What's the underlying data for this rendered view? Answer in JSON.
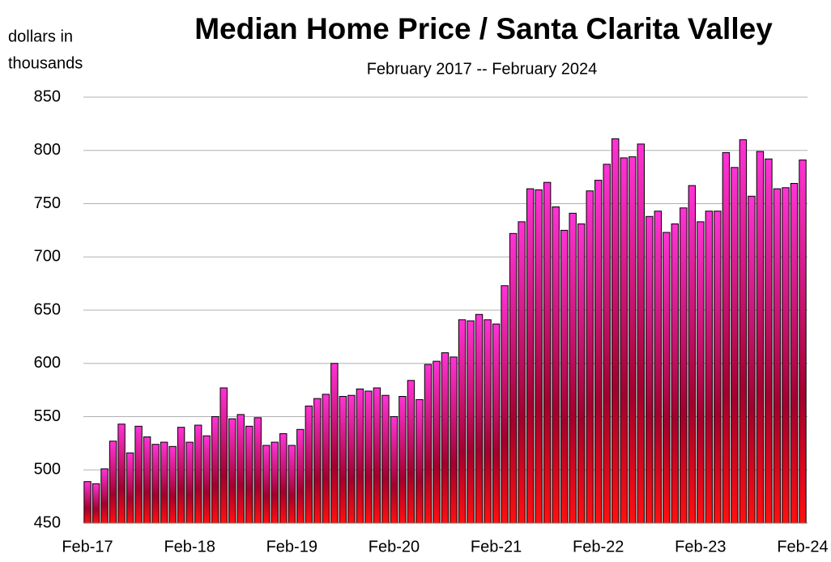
{
  "chart_data": {
    "type": "bar",
    "title": "Median Home Price / Santa Clarita Valley",
    "subtitle": "February 2017 -- February 2024",
    "ylabel": [
      "dollars in",
      "thousands"
    ],
    "categories": [
      "Feb-17",
      null,
      null,
      null,
      null,
      null,
      null,
      null,
      null,
      null,
      null,
      null,
      "Feb-18",
      null,
      null,
      null,
      null,
      null,
      null,
      null,
      null,
      null,
      null,
      null,
      "Feb-19",
      null,
      null,
      null,
      null,
      null,
      null,
      null,
      null,
      null,
      null,
      null,
      "Feb-20",
      null,
      null,
      null,
      null,
      null,
      null,
      null,
      null,
      null,
      null,
      null,
      "Feb-21",
      null,
      null,
      null,
      null,
      null,
      null,
      null,
      null,
      null,
      null,
      null,
      "Feb-22",
      null,
      null,
      null,
      null,
      null,
      null,
      null,
      null,
      null,
      null,
      null,
      "Feb-23",
      null,
      null,
      null,
      null,
      null,
      null,
      null,
      null,
      null,
      null,
      null,
      "Feb-24"
    ],
    "values": [
      489,
      487,
      501,
      527,
      543,
      516,
      541,
      531,
      524,
      526,
      522,
      540,
      526,
      542,
      532,
      550,
      577,
      548,
      552,
      541,
      549,
      523,
      526,
      534,
      523,
      538,
      560,
      567,
      571,
      600,
      569,
      570,
      576,
      574,
      577,
      570,
      550,
      569,
      584,
      566,
      599,
      602,
      610,
      606,
      641,
      640,
      646,
      641,
      637,
      673,
      722,
      733,
      764,
      763,
      770,
      747,
      725,
      741,
      731,
      762,
      772,
      787,
      811,
      793,
      794,
      806,
      738,
      743,
      723,
      731,
      746,
      767,
      733,
      743,
      743,
      798,
      784,
      810,
      757,
      799,
      792,
      764,
      765,
      769,
      791
    ],
    "colors": [
      "#ff33d6",
      "#a3002e",
      "#ff1010"
    ],
    "ylim": [
      450,
      850
    ],
    "yticks": [
      450,
      500,
      550,
      600,
      650,
      700,
      750,
      800,
      850
    ],
    "grid": true
  }
}
